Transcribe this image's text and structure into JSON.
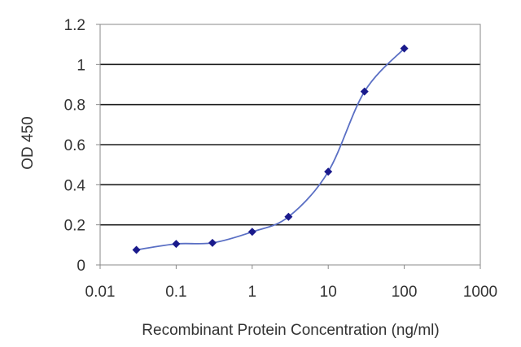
{
  "chart_data": {
    "type": "scatter",
    "title": "",
    "xlabel": "Recombinant Protein Concentration (ng/ml)",
    "ylabel": "OD 450",
    "xscale": "log",
    "xlim": [
      0.01,
      1000
    ],
    "ylim": [
      0,
      1.2
    ],
    "x_ticks": [
      "0.01",
      "0.1",
      "1",
      "10",
      "100",
      "1000"
    ],
    "y_ticks": [
      "0",
      "0.2",
      "0.4",
      "0.6",
      "0.8",
      "1",
      "1.2"
    ],
    "grid": "horizontal",
    "series": [
      {
        "x": [
          0.03,
          0.1,
          0.3,
          1,
          3,
          10,
          30,
          100
        ],
        "y": [
          0.075,
          0.105,
          0.11,
          0.165,
          0.24,
          0.465,
          0.865,
          1.08
        ],
        "fit_line": true
      }
    ],
    "colors": {
      "series": "#1a1a8c",
      "curve": "#5a6fc4",
      "grid": "#1c1c1c",
      "frame": "#888888"
    }
  }
}
